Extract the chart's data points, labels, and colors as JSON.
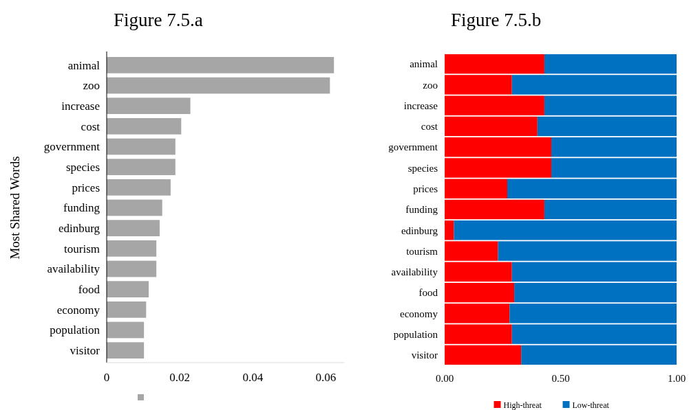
{
  "chart_data": [
    {
      "type": "bar",
      "orientation": "horizontal",
      "title": "Figure 7.5.a",
      "ylabel": "Most Shared Words",
      "categories": [
        "animal",
        "zoo",
        "increase",
        "cost",
        "government",
        "species",
        "prices",
        "funding",
        "edinburg",
        "tourism",
        "availability",
        "food",
        "economy",
        "population",
        "visitor"
      ],
      "series": [
        {
          "color": "#a6a6a6",
          "values": [
            0.0622,
            0.0611,
            0.0229,
            0.0204,
            0.0188,
            0.0188,
            0.0175,
            0.0152,
            0.0145,
            0.0136,
            0.0136,
            0.0115,
            0.0108,
            0.0102,
            0.0102
          ]
        }
      ],
      "xlim": [
        0,
        0.065
      ],
      "xticks": [
        0,
        0.02,
        0.04,
        0.06
      ]
    },
    {
      "type": "bar",
      "orientation": "horizontal",
      "stacked": true,
      "title": "Figure 7.5.b",
      "categories": [
        "animal",
        "zoo",
        "increase",
        "cost",
        "government",
        "species",
        "prices",
        "funding",
        "edinburg",
        "tourism",
        "availability",
        "food",
        "economy",
        "population",
        "visitor"
      ],
      "series": [
        {
          "name": "High-threat",
          "color": "#ff0000",
          "values": [
            0.43,
            0.29,
            0.43,
            0.4,
            0.46,
            0.46,
            0.27,
            0.43,
            0.04,
            0.23,
            0.29,
            0.3,
            0.28,
            0.29,
            0.33
          ]
        },
        {
          "name": "Low-threat",
          "color": "#0070c0",
          "values": [
            0.57,
            0.71,
            0.57,
            0.6,
            0.54,
            0.54,
            0.73,
            0.57,
            0.96,
            0.77,
            0.71,
            0.7,
            0.72,
            0.71,
            0.67
          ]
        }
      ],
      "xlim": [
        0,
        1
      ],
      "xticks": [
        {
          "value": 0,
          "label": "0.00"
        },
        {
          "value": 0.5,
          "label": "0.50"
        },
        {
          "value": 1,
          "label": "1.00"
        }
      ],
      "legend": "bottom"
    }
  ]
}
